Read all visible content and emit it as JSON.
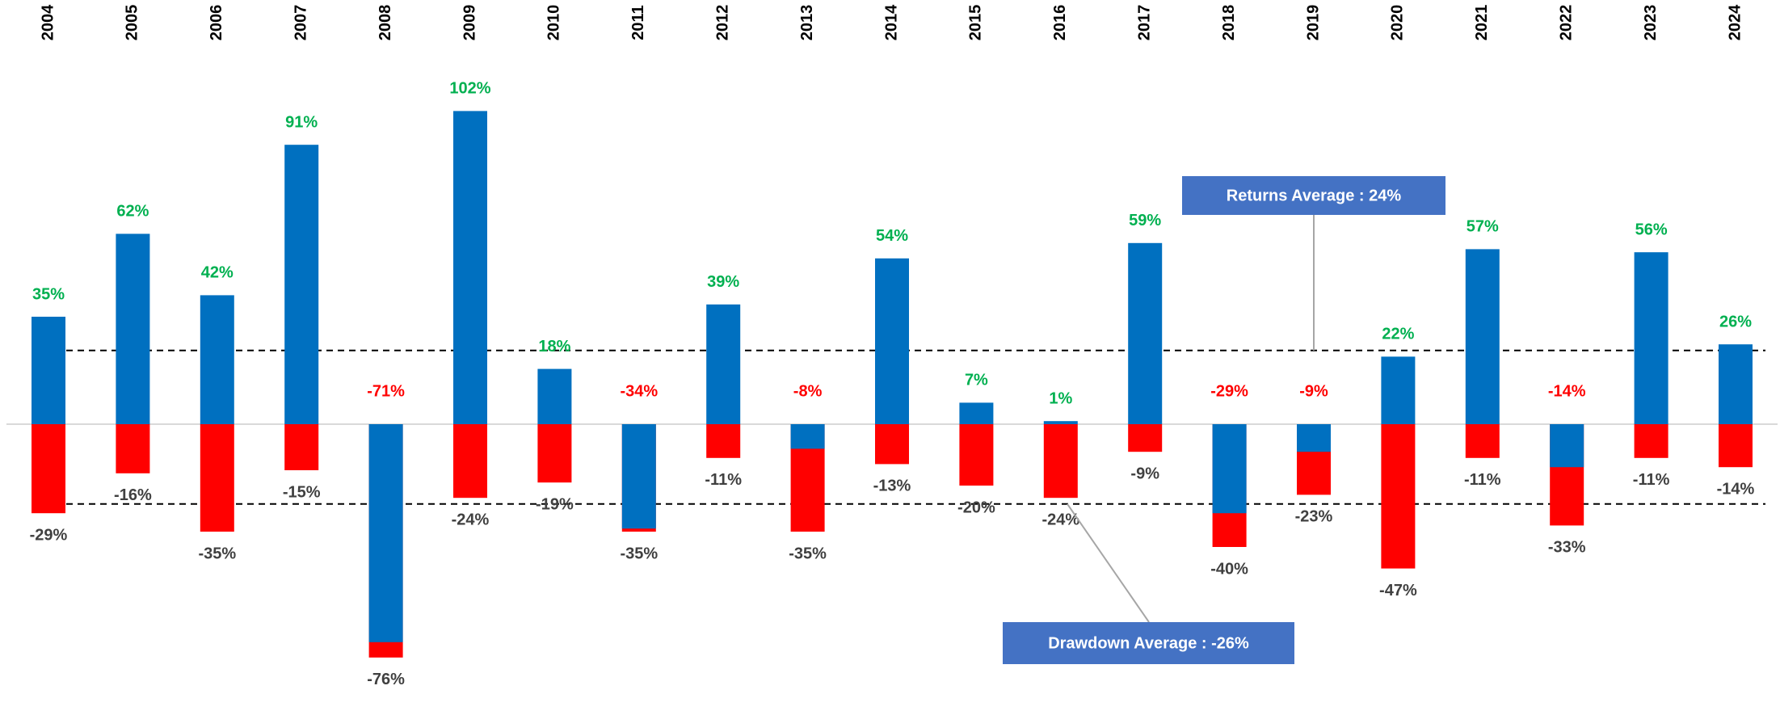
{
  "chart_data": {
    "type": "bar",
    "categories": [
      "2004",
      "2005",
      "2006",
      "2007",
      "2008",
      "2009",
      "2010",
      "2011",
      "2012",
      "2013",
      "2014",
      "2015",
      "2016",
      "2017",
      "2018",
      "2019",
      "2020",
      "2021",
      "2022",
      "2023",
      "2024"
    ],
    "series": [
      {
        "color": "#0070c0",
        "values": [
          35,
          62,
          42,
          91,
          -71,
          102,
          18,
          -34,
          39,
          -8,
          54,
          7,
          1,
          59,
          -29,
          -9,
          22,
          57,
          -14,
          56,
          26
        ],
        "value_labels": [
          "35%",
          "62%",
          "42%",
          "91%",
          "-71%",
          "102%",
          "18%",
          "-34%",
          "39%",
          "-8%",
          "54%",
          "7%",
          "1%",
          "59%",
          "-29%",
          "-9%",
          "22%",
          "57%",
          "-14%",
          "56%",
          "26%"
        ],
        "label_colors": {
          "positive": "#00b050",
          "negative": "#ff0000"
        }
      },
      {
        "color": "#ff0000",
        "values": [
          -29,
          -16,
          -35,
          -15,
          -76,
          -24,
          -19,
          -35,
          -11,
          -35,
          -13,
          -20,
          -24,
          -9,
          -40,
          -23,
          -47,
          -11,
          -33,
          -11,
          -14
        ],
        "value_labels": [
          "-29%",
          "-16%",
          "-35%",
          "-15%",
          "-76%",
          "-24%",
          "-19%",
          "-35%",
          "-11%",
          "-35%",
          "-13%",
          "-20%",
          "-24%",
          "-9%",
          "-40%",
          "-23%",
          "-47%",
          "-11%",
          "-33%",
          "-11%",
          "-14%"
        ],
        "label_color": "#404040"
      }
    ],
    "ylim": [
      -90,
      110
    ],
    "averages": [
      {
        "label": "Returns Average : 24%",
        "value": 24
      },
      {
        "label": "Drawdown Average : -26%",
        "value": -26
      }
    ],
    "annotation_color": "#4472c4"
  }
}
